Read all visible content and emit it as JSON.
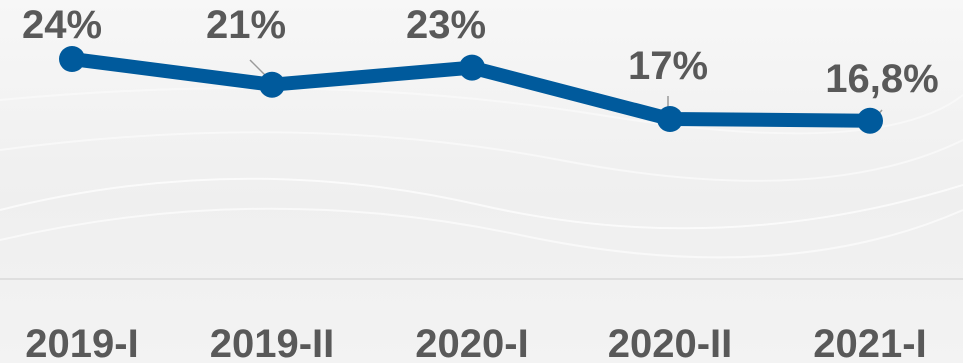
{
  "chart_data": {
    "type": "line",
    "categories": [
      "2019-I",
      "2019-II",
      "2020-I",
      "2020-II",
      "2021-I"
    ],
    "series": [
      {
        "values": [
          24,
          21,
          23,
          17,
          16.8
        ],
        "labels": [
          "24%",
          "21%",
          "23%",
          "17%",
          "16,8%"
        ],
        "color": "#005a9c"
      }
    ],
    "ylim": [
      0,
      30
    ],
    "grid": false,
    "legend": "none",
    "axis_color": "#d9d9d9",
    "label_color": "#595959"
  }
}
